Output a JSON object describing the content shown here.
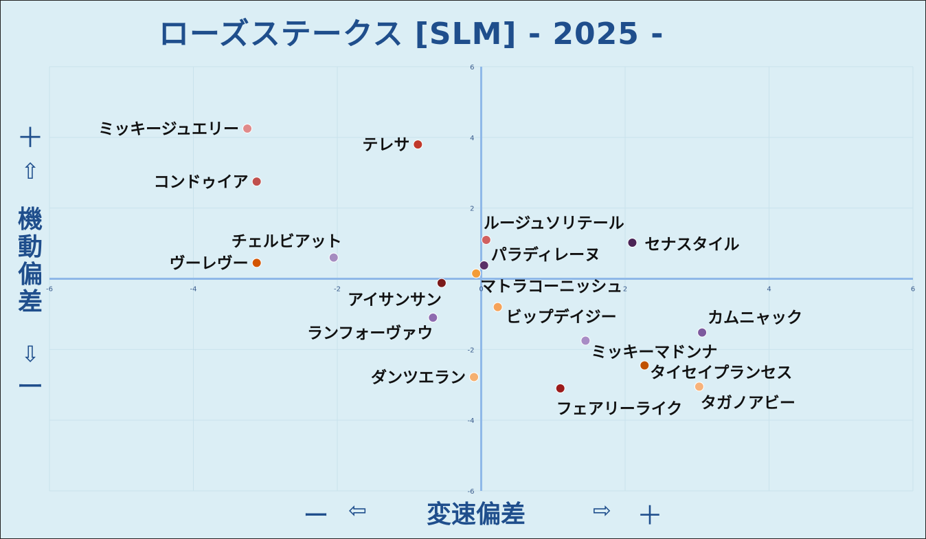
{
  "title": "ローズステークス [SLM]  - 2025 -",
  "y_axis": {
    "plus": "＋",
    "up_arrow": "⇧",
    "label": "機動偏差",
    "down_arrow": "⇩",
    "minus": "ー"
  },
  "x_axis": {
    "minus": "ー",
    "left_arrow": "⇦",
    "label": "変速偏差",
    "right_arrow": "⇨",
    "plus": "＋"
  },
  "colors": {
    "background": "#dbeef5",
    "axis": "#8fb8e8",
    "grid": "#c9e2ec",
    "title": "#1f4e8c"
  },
  "chart_data": {
    "type": "scatter",
    "title": "ローズステークス [SLM]  - 2025 -",
    "xlabel": "変速偏差",
    "ylabel": "機動偏差",
    "xlim": [
      -6,
      6
    ],
    "ylim": [
      -6,
      6
    ],
    "xticks": [
      -6,
      -4,
      -2,
      0,
      2,
      4,
      6
    ],
    "yticks": [
      -6,
      -4,
      -2,
      0,
      2,
      4,
      6
    ],
    "grid": true,
    "points": [
      {
        "name": "ミッキージュエリー",
        "x": -3.25,
        "y": 4.25,
        "color": "#e08a8a"
      },
      {
        "name": "テレサ",
        "x": -0.88,
        "y": 3.8,
        "color": "#c0392b"
      },
      {
        "name": "コンドゥイア",
        "x": -3.12,
        "y": 2.75,
        "color": "#c0504d"
      },
      {
        "name": "ルージュソリテール",
        "x": 0.07,
        "y": 1.1,
        "color": "#d06060"
      },
      {
        "name": "セナスタイル",
        "x": 2.1,
        "y": 1.02,
        "color": "#4a2456"
      },
      {
        "name": "チェルビアット",
        "x": -2.05,
        "y": 0.6,
        "color": "#a58cc0"
      },
      {
        "name": "ヴーレヴー",
        "x": -3.12,
        "y": 0.45,
        "color": "#d35400"
      },
      {
        "name": "パラディレーヌ",
        "x": 0.04,
        "y": 0.38,
        "color": "#5a3068"
      },
      {
        "name": "マトラコーニッシュ",
        "x": -0.07,
        "y": 0.15,
        "color": "#f39c38"
      },
      {
        "name": "アイサンサン",
        "x": -0.55,
        "y": -0.12,
        "color": "#7b1a1a"
      },
      {
        "name": "ビップデイジー",
        "x": 0.23,
        "y": -0.8,
        "color": "#f5a35a"
      },
      {
        "name": "ランフォーヴァウ",
        "x": -0.67,
        "y": -1.1,
        "color": "#8e6bb0"
      },
      {
        "name": "カムニャック",
        "x": 3.07,
        "y": -1.52,
        "color": "#7d5a9e"
      },
      {
        "name": "ミッキーマドンナ",
        "x": 1.45,
        "y": -1.75,
        "color": "#a88cc5"
      },
      {
        "name": "タイセイプランセス",
        "x": 2.27,
        "y": -2.45,
        "color": "#c05000"
      },
      {
        "name": "ダンツエラン",
        "x": -0.1,
        "y": -2.78,
        "color": "#f5b070"
      },
      {
        "name": "フェアリーライク",
        "x": 1.1,
        "y": -3.1,
        "color": "#9b1b1b"
      },
      {
        "name": "タガノアビー",
        "x": 3.03,
        "y": -3.05,
        "color": "#f7b27a"
      }
    ]
  }
}
